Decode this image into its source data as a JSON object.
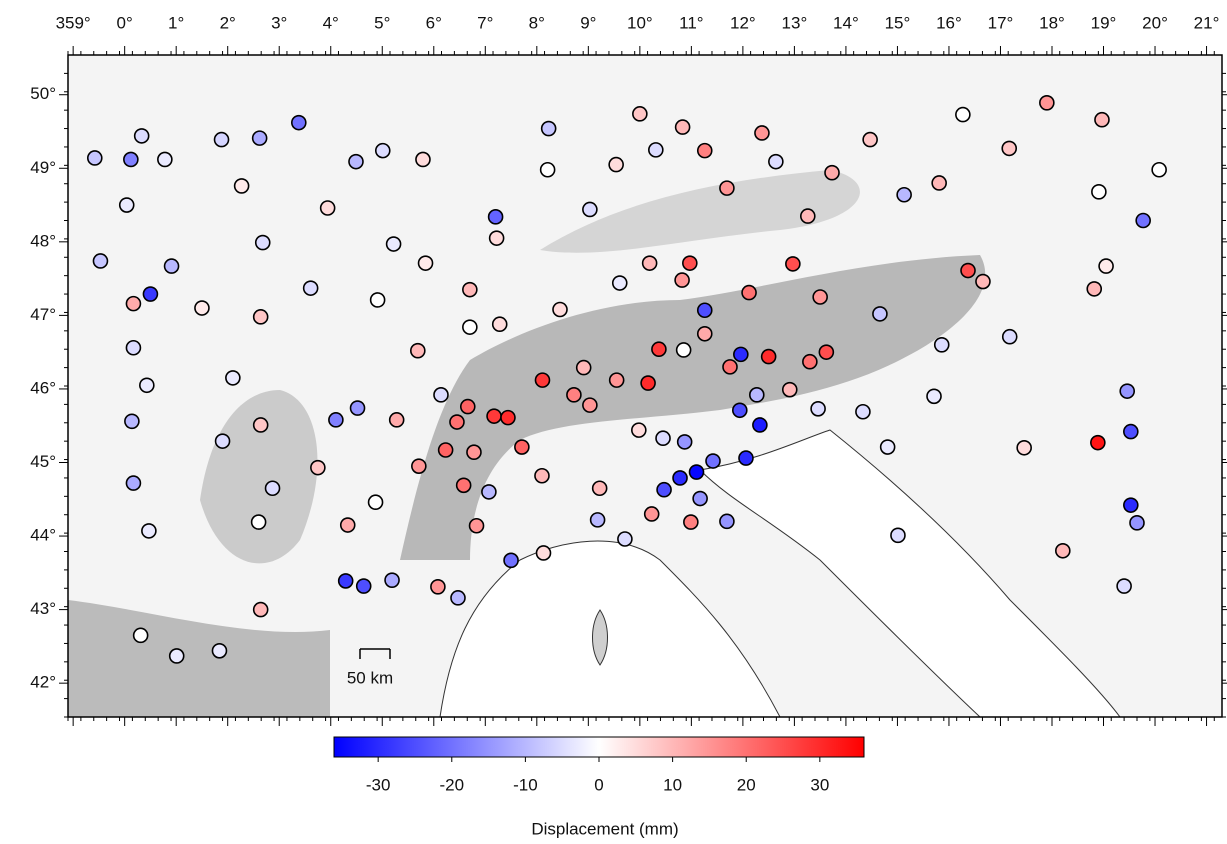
{
  "chart_data": {
    "type": "scatter",
    "xticks": [
      {
        "value": -1,
        "label": "359°"
      },
      {
        "value": 0,
        "label": "0°"
      },
      {
        "value": 1,
        "label": "1°"
      },
      {
        "value": 2,
        "label": "2°"
      },
      {
        "value": 3,
        "label": "3°"
      },
      {
        "value": 4,
        "label": "4°"
      },
      {
        "value": 5,
        "label": "5°"
      },
      {
        "value": 6,
        "label": "6°"
      },
      {
        "value": 7,
        "label": "7°"
      },
      {
        "value": 8,
        "label": "8°"
      },
      {
        "value": 9,
        "label": "9°"
      },
      {
        "value": 10,
        "label": "10°"
      },
      {
        "value": 11,
        "label": "11°"
      },
      {
        "value": 12,
        "label": "12°"
      },
      {
        "value": 13,
        "label": "13°"
      },
      {
        "value": 14,
        "label": "14°"
      },
      {
        "value": 15,
        "label": "15°"
      },
      {
        "value": 16,
        "label": "16°"
      },
      {
        "value": 17,
        "label": "17°"
      },
      {
        "value": 18,
        "label": "18°"
      },
      {
        "value": 19,
        "label": "19°"
      },
      {
        "value": 20,
        "label": "20°"
      },
      {
        "value": 21,
        "label": "21°"
      }
    ],
    "yticks": [
      {
        "value": 42,
        "label": "42°"
      },
      {
        "value": 43,
        "label": "43°"
      },
      {
        "value": 44,
        "label": "44°"
      },
      {
        "value": 45,
        "label": "45°"
      },
      {
        "value": 46,
        "label": "46°"
      },
      {
        "value": 47,
        "label": "47°"
      },
      {
        "value": 48,
        "label": "48°"
      },
      {
        "value": 49,
        "label": "49°"
      },
      {
        "value": 50,
        "label": "50°"
      }
    ],
    "xlim": [
      -1.1,
      21.3
    ],
    "ylim": [
      41.54,
      50.54
    ],
    "x": [
      -0.58,
      0.12,
      0.33,
      0.78,
      0.04,
      -0.47,
      0.5,
      0.17,
      0.91,
      0.17,
      0.43,
      0.14,
      0.17,
      0.47,
      0.31,
      1.01,
      1.84,
      1.88,
      2.62,
      2.27,
      2.68,
      1.5,
      2.64,
      2.1,
      1.9,
      2.64,
      2.87,
      2.6,
      2.64,
      3.38,
      3.94,
      3.61,
      4.1,
      3.75,
      4.33,
      4.29,
      4.64,
      5.01,
      4.49,
      5.22,
      4.91,
      4.52,
      4.87,
      5.19,
      5.79,
      5.84,
      5.69,
      5.28,
      5.71,
      6.08,
      6.47,
      6.14,
      6.45,
      6.23,
      6.66,
      7.17,
      7.44,
      6.78,
      6.58,
      6.83,
      7.07,
      7.5,
      8.13,
      8.11,
      7.28,
      7.22,
      7.2,
      8.23,
      8.21,
      9.03,
      9.54,
      10.0,
      10.31,
      10.83,
      11.26,
      11.69,
      12.37,
      12.64,
      13.26,
      13.73,
      14.47,
      15.13,
      15.81,
      16.27,
      17.17,
      17.9,
      18.97,
      18.91,
      19.77,
      20.08,
      19.05,
      18.82,
      16.37,
      16.66,
      17.18,
      15.86,
      15.71,
      17.46,
      19.53,
      18.89,
      19.46,
      19.53,
      19.65,
      18.21,
      19.4,
      15.01,
      14.81,
      14.33,
      13.46,
      13.62,
      13.3,
      12.5,
      11.96,
      11.26,
      11.26,
      10.85,
      10.37,
      10.16,
      9.55,
      8.72,
      9.03,
      9.98,
      10.45,
      10.87,
      11.1,
      10.78,
      10.47,
      11.42,
      12.06,
      12.33,
      11.94,
      12.27,
      12.91,
      11.17,
      11.69,
      10.99,
      10.23,
      9.71,
      9.18,
      9.22,
      8.1,
      7.71,
      8.91,
      11.75,
      10.82,
      10.97,
      12.12,
      12.97,
      13.5,
      14.66,
      10.19,
      9.61,
      8.45,
      6.7,
      6.7
    ],
    "y": [
      49.14,
      49.12,
      49.44,
      49.12,
      48.5,
      47.74,
      47.29,
      47.16,
      47.67,
      46.56,
      46.05,
      45.56,
      44.72,
      44.07,
      42.65,
      42.37,
      42.44,
      49.39,
      49.41,
      48.76,
      47.99,
      47.1,
      46.98,
      46.15,
      45.29,
      45.51,
      44.65,
      44.19,
      43.0,
      49.62,
      48.46,
      47.37,
      45.58,
      44.93,
      44.15,
      43.39,
      43.32,
      49.24,
      49.09,
      47.97,
      47.21,
      45.74,
      44.46,
      43.4,
      49.12,
      47.71,
      46.52,
      45.58,
      44.95,
      43.31,
      43.16,
      45.92,
      45.55,
      45.17,
      45.76,
      45.63,
      45.61,
      45.14,
      44.69,
      44.14,
      44.6,
      43.67,
      43.77,
      46.12,
      46.88,
      48.05,
      48.34,
      49.54,
      48.98,
      48.44,
      49.05,
      49.74,
      49.25,
      49.56,
      49.24,
      48.73,
      49.48,
      49.09,
      48.35,
      48.94,
      49.39,
      48.64,
      48.8,
      49.73,
      49.27,
      49.89,
      49.66,
      48.68,
      48.29,
      48.98,
      47.67,
      47.36,
      47.61,
      47.46,
      46.71,
      46.6,
      45.9,
      45.2,
      45.42,
      45.27,
      45.97,
      44.42,
      44.18,
      43.8,
      43.32,
      44.01,
      45.21,
      45.69,
      45.73,
      46.5,
      46.37,
      46.44,
      46.47,
      47.07,
      46.75,
      46.53,
      46.54,
      46.08,
      46.12,
      45.92,
      45.78,
      45.44,
      45.33,
      45.28,
      44.87,
      44.79,
      44.63,
      45.02,
      45.06,
      45.51,
      45.71,
      45.92,
      45.99,
      44.51,
      44.2,
      44.19,
      44.3,
      43.96,
      44.22,
      44.65,
      44.82,
      45.21,
      46.29,
      46.3,
      47.48,
      47.71,
      47.31,
      47.7,
      47.25,
      47.02,
      47.71,
      47.44,
      47.08,
      46.84,
      47.35
    ],
    "values": [
      -8,
      -18,
      -5,
      -3,
      -3,
      -8,
      -28,
      12,
      -10,
      -5,
      -3,
      -10,
      -12,
      -3,
      0,
      -3,
      -3,
      -6,
      -12,
      3,
      -5,
      3,
      8,
      -3,
      -5,
      8,
      -5,
      0,
      10,
      -20,
      5,
      -5,
      -18,
      8,
      12,
      -28,
      -25,
      -5,
      -10,
      -3,
      0,
      -15,
      0,
      -12,
      5,
      3,
      10,
      12,
      15,
      15,
      -10,
      -5,
      20,
      22,
      22,
      28,
      30,
      15,
      20,
      15,
      -10,
      -20,
      5,
      28,
      5,
      5,
      -22,
      -8,
      0,
      -5,
      5,
      8,
      -5,
      10,
      18,
      15,
      15,
      -5,
      10,
      12,
      8,
      -10,
      10,
      0,
      8,
      15,
      10,
      0,
      -20,
      0,
      3,
      10,
      25,
      10,
      -5,
      -5,
      -3,
      5,
      -25,
      33,
      -15,
      -30,
      -15,
      10,
      -5,
      -5,
      -3,
      -5,
      -5,
      25,
      20,
      30,
      -30,
      -25,
      12,
      0,
      28,
      30,
      15,
      18,
      15,
      5,
      -5,
      -15,
      -35,
      -30,
      -25,
      -20,
      -30,
      -32,
      -25,
      -10,
      10,
      -15,
      -15,
      18,
      15,
      -5,
      -10,
      10,
      10,
      22,
      10,
      20,
      15,
      25,
      20,
      25,
      15,
      -8,
      10,
      -3,
      5,
      0,
      10
    ],
    "colorbar": {
      "clim": [
        -36,
        36
      ],
      "ticks": [
        -30,
        -20,
        -10,
        0,
        10,
        20,
        30
      ],
      "colors": [
        "#0000ff",
        "#ffffff",
        "#ff0000"
      ],
      "label": "Displacement (mm)"
    },
    "scale_bar": {
      "label": "50 km"
    }
  }
}
